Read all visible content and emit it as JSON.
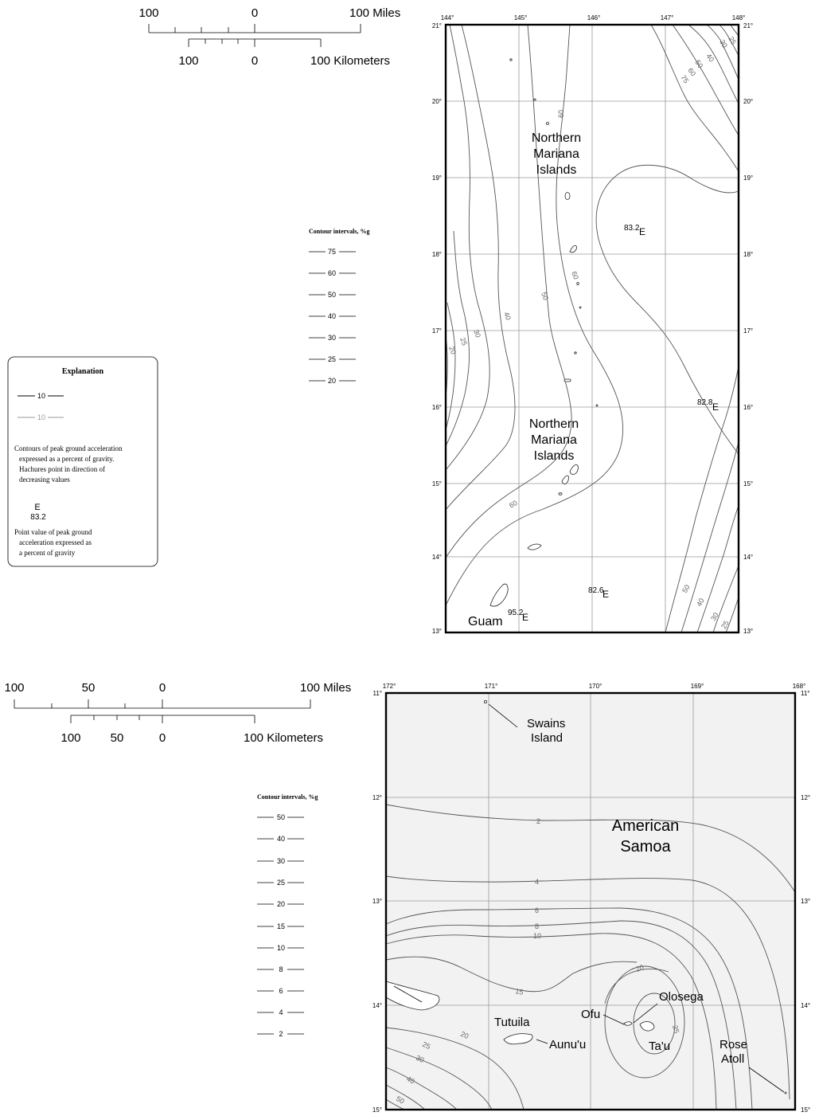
{
  "mariana": {
    "scale": {
      "miles_labels": [
        "100",
        "0",
        "100 Miles"
      ],
      "km_labels": [
        "100",
        "0",
        "100  Kilometers"
      ]
    },
    "lon_labels": [
      "144°",
      "145°",
      "146°",
      "147°",
      "148°"
    ],
    "lat_labels": [
      "21°",
      "20°",
      "19°",
      "18°",
      "17°",
      "16°",
      "15°",
      "14°",
      "13°"
    ],
    "place_labels": {
      "northern_upper": [
        "Northern",
        "Mariana",
        "Islands"
      ],
      "northern_lower": [
        "Northern",
        "Mariana",
        "Islands"
      ],
      "guam": "Guam"
    },
    "point_values": [
      {
        "value": "83.2",
        "marker": "E"
      },
      {
        "value": "82.8",
        "marker": "E"
      },
      {
        "value": "82.6",
        "marker": "E"
      },
      {
        "value": "95.2",
        "marker": "E"
      }
    ],
    "contour_labels": [
      "25",
      "30",
      "40",
      "50",
      "60",
      "75",
      "60",
      "50",
      "40",
      "30",
      "25",
      "20",
      "60",
      "60",
      "50",
      "40",
      "30",
      "25"
    ],
    "contour_legend": {
      "title": "Contour intervals, %g",
      "values": [
        "75",
        "60",
        "50",
        "40",
        "30",
        "25",
        "20"
      ]
    }
  },
  "explanation": {
    "title": "Explanation",
    "sample_dark": "10",
    "sample_light": "10",
    "contour_text": [
      "Contours of peak ground acceleration",
      "expressed as a percent of gravity.",
      "Hachures point in direction of",
      "decreasing values"
    ],
    "point_marker": "E",
    "point_value": "83.2",
    "point_text": [
      "Point value of peak ground",
      "acceleration expressed as",
      "a percent of gravity"
    ]
  },
  "samoa": {
    "scale": {
      "miles_labels": [
        "100",
        "50",
        "0",
        "100 Miles"
      ],
      "km_labels": [
        "100",
        "50",
        "0",
        "100  Kilometers"
      ]
    },
    "lon_labels": [
      "172°",
      "171°",
      "170°",
      "169°",
      "168°"
    ],
    "lat_labels": [
      "11°",
      "12°",
      "13°",
      "14°",
      "15°"
    ],
    "title": [
      "American",
      "Samoa"
    ],
    "place_labels": {
      "swains": [
        "Swains",
        "Island"
      ],
      "tutuila": "Tutuila",
      "aunuu": "Aunu'u",
      "ofu": "Ofu",
      "olosega": "Olosega",
      "tau": "Ta'u",
      "rose": [
        "Rose",
        "Atoll"
      ]
    },
    "contour_labels": [
      "2",
      "4",
      "6",
      "8",
      "10",
      "15",
      "20",
      "25",
      "30",
      "40",
      "50",
      "20",
      "25"
    ],
    "contour_legend": {
      "title": "Contour intervals, %g",
      "values": [
        "50",
        "40",
        "30",
        "25",
        "20",
        "15",
        "10",
        "8",
        "6",
        "4",
        "2"
      ]
    }
  }
}
